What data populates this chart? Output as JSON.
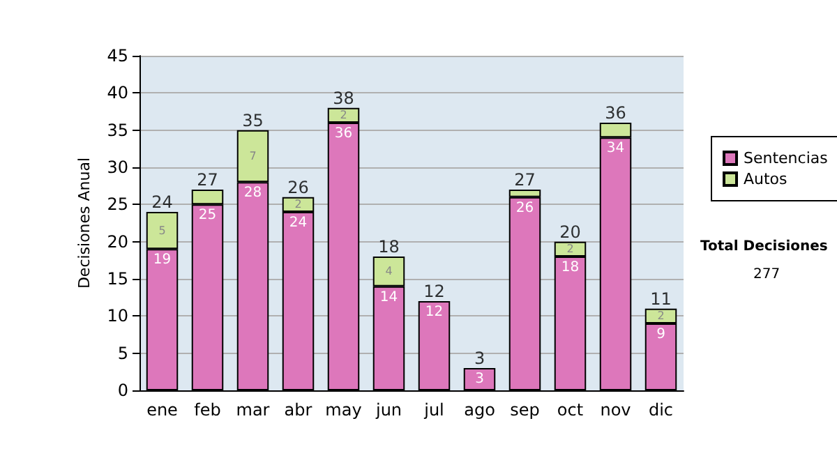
{
  "chart_data": {
    "type": "bar",
    "stacked": true,
    "ylabel": "Decisiones Anual",
    "categories": [
      "ene",
      "feb",
      "mar",
      "abr",
      "may",
      "jun",
      "jul",
      "ago",
      "sep",
      "oct",
      "nov",
      "dic"
    ],
    "series": [
      {
        "name": "Sentencias",
        "color": "#dd77bb",
        "values": [
          19,
          25,
          28,
          24,
          36,
          14,
          12,
          3,
          26,
          18,
          34,
          9
        ],
        "value_labels": [
          "19",
          "25",
          "28",
          "24",
          "36",
          "14",
          "12",
          "3",
          "26",
          "18",
          "34",
          "9"
        ]
      },
      {
        "name": "Autos",
        "color": "#cce699",
        "values": [
          5,
          2,
          7,
          2,
          2,
          4,
          0,
          0,
          1,
          2,
          2,
          2
        ],
        "value_labels": [
          "5",
          null,
          "7",
          "2",
          "2",
          "4",
          null,
          null,
          null,
          "2",
          null,
          "2"
        ]
      }
    ],
    "totals": [
      "24",
      "27",
      "35",
      "26",
      "38",
      "18",
      "12",
      "3",
      "27",
      "20",
      "36",
      "11"
    ],
    "ylim": [
      0,
      45
    ],
    "yticks": [
      0,
      5,
      10,
      15,
      20,
      25,
      30,
      35,
      40,
      45
    ],
    "grid": "y",
    "legend": "right",
    "annotations": [
      "Total Decisiones",
      "277"
    ]
  }
}
